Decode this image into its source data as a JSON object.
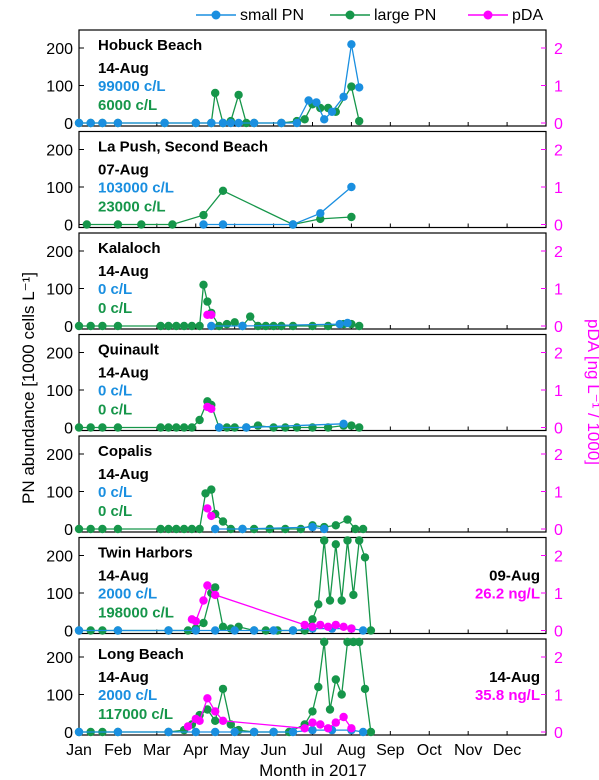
{
  "colors": {
    "small": "#1a8fe0",
    "large": "#16964a",
    "pda": "#ff00ff",
    "axis": "#000000"
  },
  "chart_data": {
    "type": "line",
    "title": "",
    "xlabel": "Month in 2017",
    "ylabel_left": "PN abundance [1000 cells L⁻¹]",
    "ylabel_right": "pDA [ng L⁻¹ / 1000]",
    "months": [
      "Jan",
      "Feb",
      "Mar",
      "Apr",
      "May",
      "Jun",
      "Jul",
      "Aug",
      "Sep",
      "Oct",
      "Nov",
      "Dec"
    ],
    "ylim_left": [
      0,
      240
    ],
    "ylim_right": [
      0,
      2.4
    ],
    "yticks_left": [
      "0",
      "100",
      "200"
    ],
    "yticks_right": [
      "0",
      "1",
      "2"
    ],
    "legend": [
      "small PN",
      "large PN",
      "pDA"
    ],
    "legend_position": "top",
    "panels": [
      {
        "site": "Hobuck Beach",
        "date": "14-Aug",
        "small_text": "99000 c/L",
        "large_text": "6000 c/L",
        "pda_date": "",
        "pda_text": "",
        "large": [
          [
            1,
            0
          ],
          [
            1.3,
            0
          ],
          [
            1.6,
            0
          ],
          [
            2.0,
            0
          ],
          [
            3.2,
            0
          ],
          [
            4.0,
            0
          ],
          [
            4.4,
            0
          ],
          [
            4.5,
            80
          ],
          [
            4.7,
            0
          ],
          [
            4.9,
            5
          ],
          [
            5.1,
            75
          ],
          [
            5.3,
            0
          ],
          [
            5.5,
            0
          ],
          [
            6.2,
            0
          ],
          [
            6.6,
            5
          ],
          [
            6.8,
            10
          ],
          [
            7.0,
            50
          ],
          [
            7.2,
            40
          ],
          [
            7.4,
            40
          ],
          [
            7.6,
            30
          ],
          [
            8.0,
            97
          ],
          [
            8.2,
            5
          ]
        ],
        "small": [
          [
            1,
            0
          ],
          [
            1.3,
            0
          ],
          [
            1.6,
            0
          ],
          [
            2.0,
            0
          ],
          [
            3.2,
            0
          ],
          [
            4.0,
            0
          ],
          [
            4.4,
            0
          ],
          [
            4.7,
            0
          ],
          [
            4.9,
            0
          ],
          [
            5.1,
            0
          ],
          [
            5.5,
            0
          ],
          [
            6.2,
            0
          ],
          [
            6.6,
            0
          ],
          [
            6.9,
            60
          ],
          [
            7.1,
            55
          ],
          [
            7.3,
            10
          ],
          [
            7.5,
            30
          ],
          [
            7.8,
            70
          ],
          [
            8.0,
            210
          ],
          [
            8.2,
            95
          ]
        ],
        "pda": []
      },
      {
        "site": "La Push, Second Beach",
        "date": "07-Aug",
        "small_text": "103000 c/L",
        "large_text": "23000 c/L",
        "pda_date": "",
        "pda_text": "",
        "large": [
          [
            1.2,
            0
          ],
          [
            2.0,
            0
          ],
          [
            2.6,
            0
          ],
          [
            3.4,
            0
          ],
          [
            4.2,
            25
          ],
          [
            4.7,
            90
          ],
          [
            6.5,
            0
          ],
          [
            7.2,
            15
          ],
          [
            8.0,
            20
          ]
        ],
        "small": [
          [
            4.2,
            0
          ],
          [
            4.7,
            0
          ],
          [
            6.5,
            0
          ],
          [
            7.2,
            30
          ],
          [
            8.0,
            100
          ]
        ],
        "pda": []
      },
      {
        "site": "Kalaloch",
        "date": "14-Aug",
        "small_text": "0 c/L",
        "large_text": "0 c/L",
        "pda_date": "",
        "pda_text": "",
        "large": [
          [
            1,
            0
          ],
          [
            1.3,
            0
          ],
          [
            1.6,
            0
          ],
          [
            2.0,
            0
          ],
          [
            3.1,
            0
          ],
          [
            3.3,
            0
          ],
          [
            3.5,
            0
          ],
          [
            3.7,
            0
          ],
          [
            3.9,
            0
          ],
          [
            4.1,
            0
          ],
          [
            4.2,
            110
          ],
          [
            4.3,
            65
          ],
          [
            4.4,
            35
          ],
          [
            4.6,
            0
          ],
          [
            4.8,
            5
          ],
          [
            5.0,
            10
          ],
          [
            5.2,
            0
          ],
          [
            5.4,
            25
          ],
          [
            5.6,
            0
          ],
          [
            5.8,
            0
          ],
          [
            6.0,
            0
          ],
          [
            6.2,
            0
          ],
          [
            6.5,
            0
          ],
          [
            7.0,
            0
          ],
          [
            7.4,
            0
          ],
          [
            7.8,
            5
          ],
          [
            8.0,
            5
          ],
          [
            8.2,
            0
          ]
        ],
        "small": [
          [
            4.4,
            0
          ],
          [
            5.2,
            0
          ],
          [
            7.7,
            5
          ],
          [
            7.9,
            8
          ]
        ],
        "pda": [
          [
            4.3,
            0.3
          ],
          [
            4.4,
            0.3
          ]
        ]
      },
      {
        "site": "Quinault",
        "date": "14-Aug",
        "small_text": "0 c/L",
        "large_text": "0 c/L",
        "pda_date": "",
        "pda_text": "",
        "large": [
          [
            1,
            0
          ],
          [
            1.3,
            0
          ],
          [
            1.6,
            0
          ],
          [
            2.0,
            0
          ],
          [
            3.1,
            0
          ],
          [
            3.3,
            0
          ],
          [
            3.5,
            0
          ],
          [
            3.7,
            0
          ],
          [
            3.9,
            0
          ],
          [
            4.1,
            20
          ],
          [
            4.3,
            70
          ],
          [
            4.4,
            60
          ],
          [
            4.6,
            0
          ],
          [
            4.8,
            0
          ],
          [
            5.0,
            0
          ],
          [
            5.3,
            0
          ],
          [
            5.6,
            5
          ],
          [
            6.0,
            0
          ],
          [
            6.3,
            0
          ],
          [
            6.6,
            0
          ],
          [
            7.0,
            0
          ],
          [
            7.4,
            0
          ],
          [
            7.8,
            5
          ],
          [
            8.0,
            5
          ],
          [
            8.2,
            0
          ]
        ],
        "small": [
          [
            4.6,
            0
          ],
          [
            5.3,
            0
          ],
          [
            7.8,
            10
          ]
        ],
        "pda": [
          [
            4.3,
            0.55
          ],
          [
            4.4,
            0.5
          ]
        ]
      },
      {
        "site": "Copalis",
        "date": "14-Aug",
        "small_text": "0 c/L",
        "large_text": "0 c/L",
        "pda_date": "",
        "pda_text": "",
        "large": [
          [
            1,
            0
          ],
          [
            1.3,
            0
          ],
          [
            1.6,
            0
          ],
          [
            2.0,
            0
          ],
          [
            3.1,
            0
          ],
          [
            3.3,
            0
          ],
          [
            3.5,
            0
          ],
          [
            3.7,
            0
          ],
          [
            3.9,
            0
          ],
          [
            4.1,
            0
          ],
          [
            4.25,
            95
          ],
          [
            4.4,
            105
          ],
          [
            4.5,
            40
          ],
          [
            4.7,
            20
          ],
          [
            4.9,
            0
          ],
          [
            5.2,
            0
          ],
          [
            5.5,
            0
          ],
          [
            5.9,
            0
          ],
          [
            6.3,
            0
          ],
          [
            6.7,
            0
          ],
          [
            7.0,
            10
          ],
          [
            7.3,
            5
          ],
          [
            7.6,
            10
          ],
          [
            7.9,
            25
          ],
          [
            8.1,
            0
          ],
          [
            8.3,
            0
          ]
        ],
        "small": [
          [
            4.5,
            0
          ],
          [
            5.2,
            0
          ],
          [
            7.0,
            5
          ],
          [
            7.3,
            0
          ]
        ],
        "pda": [
          [
            4.3,
            0.55
          ],
          [
            4.4,
            0.35
          ]
        ]
      },
      {
        "site": "Twin Harbors",
        "date": "14-Aug",
        "small_text": "2000 c/L",
        "large_text": "198000 c/L",
        "pda_date": "09-Aug",
        "pda_text": "26.2 ng/L",
        "large": [
          [
            1,
            0
          ],
          [
            1.3,
            0
          ],
          [
            1.6,
            0
          ],
          [
            2.0,
            0
          ],
          [
            3.3,
            0
          ],
          [
            3.8,
            0
          ],
          [
            4.0,
            5
          ],
          [
            4.2,
            20
          ],
          [
            4.4,
            100
          ],
          [
            4.5,
            115
          ],
          [
            4.7,
            10
          ],
          [
            4.9,
            5
          ],
          [
            5.1,
            10
          ],
          [
            5.5,
            0
          ],
          [
            5.8,
            0
          ],
          [
            6.1,
            0
          ],
          [
            6.5,
            0
          ],
          [
            6.8,
            0
          ],
          [
            7.0,
            30
          ],
          [
            7.15,
            70
          ],
          [
            7.3,
            240
          ],
          [
            7.45,
            80
          ],
          [
            7.6,
            230
          ],
          [
            7.75,
            80
          ],
          [
            7.9,
            240
          ],
          [
            8.05,
            95
          ],
          [
            8.2,
            240
          ],
          [
            8.35,
            195
          ],
          [
            8.5,
            0
          ]
        ],
        "small": [
          [
            1,
            0
          ],
          [
            2.0,
            0
          ],
          [
            3.3,
            0
          ],
          [
            4.0,
            0
          ],
          [
            4.5,
            0
          ],
          [
            5.0,
            0
          ],
          [
            5.5,
            0
          ],
          [
            6.0,
            0
          ],
          [
            6.5,
            0
          ],
          [
            7.0,
            5
          ],
          [
            7.5,
            5
          ],
          [
            8.0,
            5
          ],
          [
            8.3,
            0
          ]
        ],
        "pda": [
          [
            3.9,
            0.3
          ],
          [
            4.0,
            0.25
          ],
          [
            4.2,
            0.8
          ],
          [
            4.3,
            1.2
          ],
          [
            4.5,
            0.95
          ],
          [
            6.8,
            0.15
          ],
          [
            7.0,
            0.1
          ],
          [
            7.2,
            0.15
          ],
          [
            7.4,
            0.1
          ],
          [
            7.6,
            0.15
          ],
          [
            7.8,
            0.1
          ],
          [
            8.0,
            0.05
          ]
        ]
      },
      {
        "site": "Long Beach",
        "date": "14-Aug",
        "small_text": "2000 c/L",
        "large_text": "117000 c/L",
        "pda_date": "14-Aug",
        "pda_text": "35.8 ng/L",
        "large": [
          [
            1,
            0
          ],
          [
            1.3,
            0
          ],
          [
            1.6,
            0
          ],
          [
            2.0,
            0
          ],
          [
            3.3,
            0
          ],
          [
            3.7,
            5
          ],
          [
            3.9,
            20
          ],
          [
            4.1,
            45
          ],
          [
            4.3,
            60
          ],
          [
            4.5,
            30
          ],
          [
            4.7,
            115
          ],
          [
            4.9,
            20
          ],
          [
            5.1,
            5
          ],
          [
            5.5,
            0
          ],
          [
            6.0,
            0
          ],
          [
            6.4,
            0
          ],
          [
            6.8,
            20
          ],
          [
            7.0,
            55
          ],
          [
            7.15,
            120
          ],
          [
            7.3,
            240
          ],
          [
            7.45,
            60
          ],
          [
            7.6,
            140
          ],
          [
            7.75,
            100
          ],
          [
            7.9,
            240
          ],
          [
            8.05,
            240
          ],
          [
            8.2,
            240
          ],
          [
            8.35,
            115
          ],
          [
            8.5,
            0
          ]
        ],
        "small": [
          [
            1,
            0
          ],
          [
            2.0,
            0
          ],
          [
            3.3,
            0
          ],
          [
            4.0,
            0
          ],
          [
            4.5,
            0
          ],
          [
            5.0,
            0
          ],
          [
            5.5,
            0
          ],
          [
            6.0,
            0
          ],
          [
            6.5,
            0
          ],
          [
            7.0,
            5
          ],
          [
            7.5,
            5
          ],
          [
            8.0,
            5
          ],
          [
            8.3,
            0
          ]
        ],
        "pda": [
          [
            3.8,
            0.15
          ],
          [
            4.0,
            0.35
          ],
          [
            4.1,
            0.3
          ],
          [
            4.3,
            0.9
          ],
          [
            4.5,
            0.55
          ],
          [
            4.7,
            0.3
          ],
          [
            6.8,
            0.1
          ],
          [
            7.0,
            0.25
          ],
          [
            7.2,
            0.2
          ],
          [
            7.4,
            0.1
          ],
          [
            7.6,
            0.25
          ],
          [
            7.8,
            0.4
          ],
          [
            8.0,
            0.1
          ]
        ]
      }
    ]
  }
}
